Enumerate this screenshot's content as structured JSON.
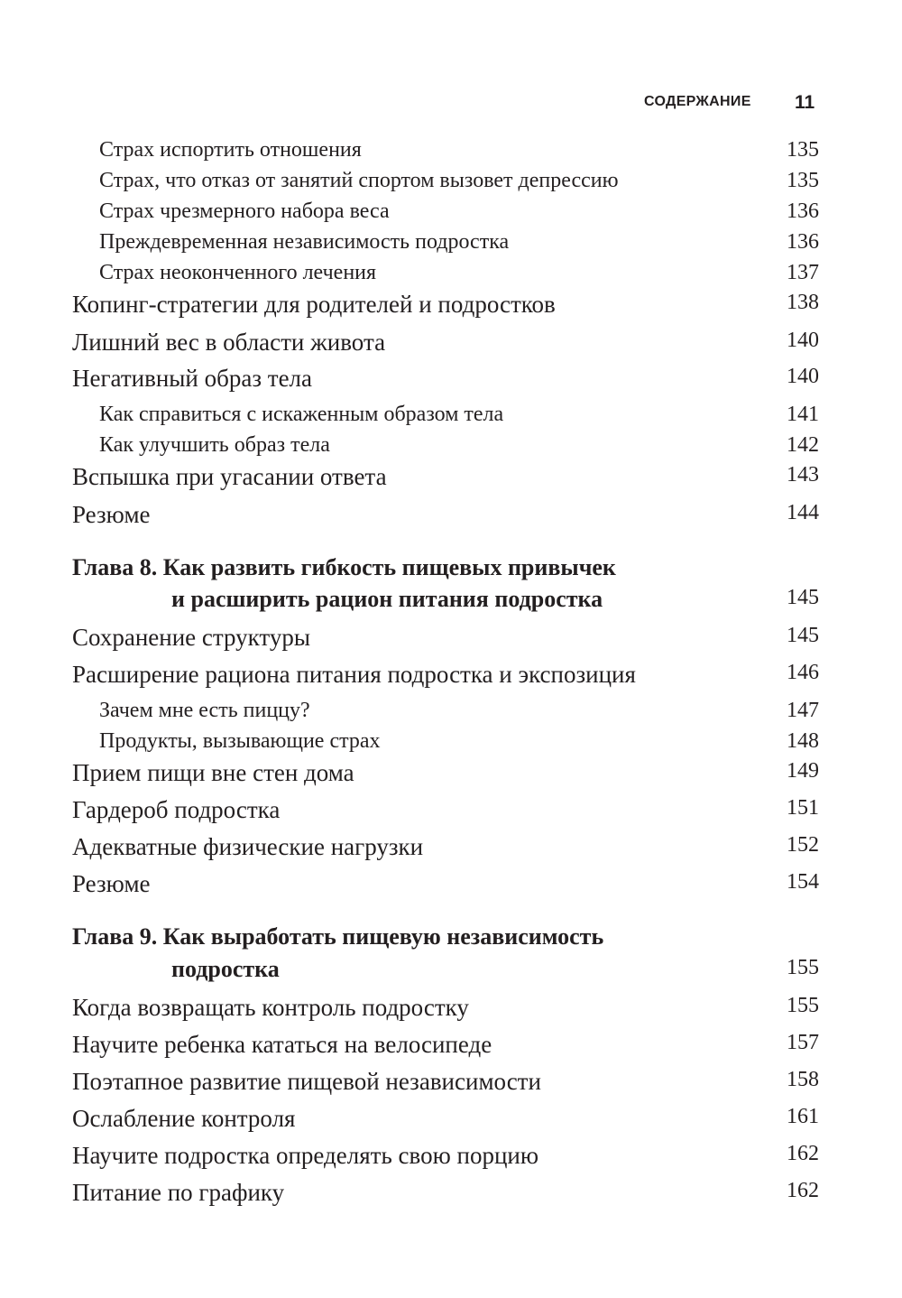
{
  "header": {
    "title": "СОДЕРЖАНИЕ",
    "page_number": "11"
  },
  "entries": [
    {
      "level": "sub",
      "text": "Страх испортить отношения",
      "page": "135"
    },
    {
      "level": "sub",
      "text": "Страх, что отказ от занятий спортом вызовет депрессию",
      "page": "135"
    },
    {
      "level": "sub",
      "text": "Страх чрезмерного набора веса",
      "page": "136"
    },
    {
      "level": "sub",
      "text": "Преждевременная независимость подростка",
      "page": "136"
    },
    {
      "level": "sub",
      "text": "Страх неоконченного лечения",
      "page": "137"
    },
    {
      "level": "main",
      "text": "Копинг-стратегии для родителей и подростков",
      "page": "138"
    },
    {
      "level": "main",
      "text": "Лишний вес в области живота",
      "page": "140"
    },
    {
      "level": "main",
      "text": "Негативный образ тела",
      "page": "140"
    },
    {
      "level": "sub",
      "text": "Как справиться с искаженным образом тела",
      "page": "141"
    },
    {
      "level": "sub",
      "text": "Как улучшить образ тела",
      "page": "142"
    },
    {
      "level": "main",
      "text": "Вспышка при угасании ответа",
      "page": "143"
    },
    {
      "level": "main",
      "text": "Резюме",
      "page": "144"
    },
    {
      "level": "ch",
      "text": "Глава 8. Как развить гибкость пищевых привычек",
      "page": ""
    },
    {
      "level": "ch2",
      "text": "и расширить рацион питания подростка",
      "page": "145"
    },
    {
      "level": "main",
      "text": "Сохранение структуры",
      "page": "145"
    },
    {
      "level": "main",
      "text": "Расширение рациона питания подростка и экспозиция",
      "page": "146"
    },
    {
      "level": "sub",
      "text": "Зачем мне есть пиццу?",
      "page": "147"
    },
    {
      "level": "sub",
      "text": "Продукты, вызывающие страх",
      "page": "148"
    },
    {
      "level": "main",
      "text": "Прием пищи вне стен дома",
      "page": "149"
    },
    {
      "level": "main",
      "text": "Гардероб подростка",
      "page": "151"
    },
    {
      "level": "main",
      "text": "Адекватные физические нагрузки",
      "page": "152"
    },
    {
      "level": "main",
      "text": "Резюме",
      "page": "154"
    },
    {
      "level": "ch",
      "text": "Глава 9. Как выработать пищевую независимость",
      "page": ""
    },
    {
      "level": "ch2",
      "text": "подростка",
      "page": "155"
    },
    {
      "level": "main",
      "text": "Когда возвращать контроль подростку",
      "page": "155"
    },
    {
      "level": "main",
      "text": "Научите ребенка кататься на велосипеде",
      "page": "157"
    },
    {
      "level": "main",
      "text": "Поэтапное развитие пищевой независимости",
      "page": "158"
    },
    {
      "level": "main",
      "text": "Ослабление контроля",
      "page": "161"
    },
    {
      "level": "main",
      "text": "Научите подростка определять свою порцию",
      "page": "162"
    },
    {
      "level": "main",
      "text": "Питание по графику",
      "page": "162"
    }
  ]
}
